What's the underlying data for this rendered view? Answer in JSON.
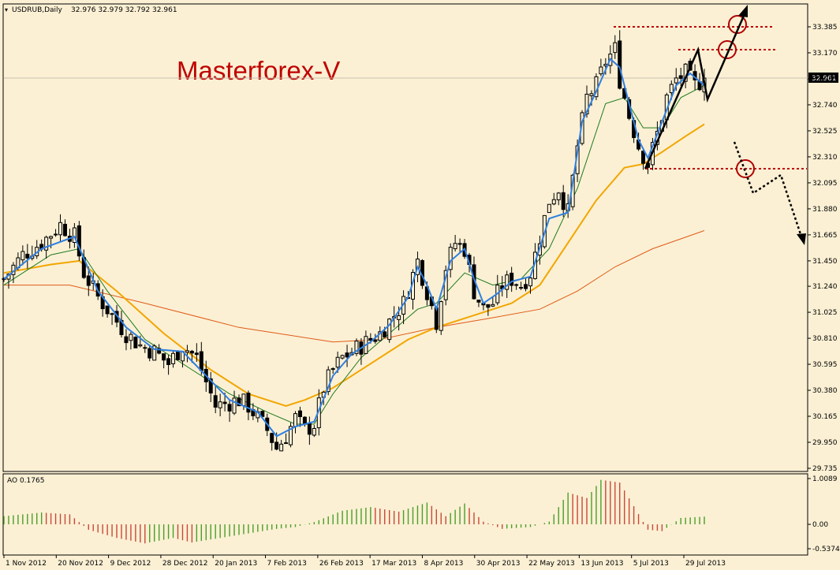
{
  "header": {
    "symbol_label": "USDRUB,Daily",
    "ohlc": "32.976 32.979 32.792 32.961"
  },
  "watermark": "Masterforex-V",
  "colors": {
    "background": "#fbf0d4",
    "bull_bar": "#4b9e2a",
    "bear_bar": "#c84838",
    "ma_fast": "#2f7fe0",
    "ma_medium": "#1e7a1e",
    "ma_slow": "#f2a600",
    "ma_long": "#e05a18",
    "annotation": "#c00000",
    "current_price_line": "#b8b0a0"
  },
  "price_tag": "32.961",
  "chart_data": [
    {
      "type": "candlestick",
      "symbol": "USDRUB",
      "timeframe": "Daily",
      "ylim": [
        29.735,
        33.385
      ],
      "y_ticks": [
        "33.385",
        "33.170",
        "32.955",
        "32.740",
        "32.525",
        "32.310",
        "32.095",
        "31.880",
        "31.665",
        "31.450",
        "31.240",
        "31.025",
        "30.810",
        "30.595",
        "30.380",
        "30.165",
        "29.950",
        "29.735"
      ],
      "x_ticks": [
        "1 Nov 2012",
        "20 Nov 2012",
        "9 Dec 2012",
        "28 Dec 2012",
        "20 Jan 2013",
        "7 Feb 2013",
        "26 Feb 2013",
        "17 Mar 2013",
        "8 Apr 2013",
        "30 Apr 2013",
        "22 May 2013",
        "13 Jun 2013",
        "5 Jul 2013",
        "29 Jul 2013"
      ],
      "last_close": 32.961,
      "price_path": [
        [
          0,
          31.3
        ],
        [
          4,
          31.5
        ],
        [
          8,
          31.6
        ],
        [
          12,
          31.75
        ],
        [
          15,
          31.65
        ],
        [
          17,
          31.35
        ],
        [
          20,
          31.15
        ],
        [
          23,
          31.0
        ],
        [
          26,
          30.85
        ],
        [
          29,
          30.75
        ],
        [
          32,
          30.7
        ],
        [
          35,
          30.6
        ],
        [
          38,
          30.75
        ],
        [
          41,
          30.65
        ],
        [
          43,
          30.45
        ],
        [
          45,
          30.25
        ],
        [
          48,
          30.28
        ],
        [
          50,
          30.3
        ],
        [
          52,
          30.25
        ],
        [
          54,
          30.15
        ],
        [
          56,
          30.05
        ],
        [
          58,
          29.9
        ],
        [
          60,
          30.0
        ],
        [
          62,
          30.15
        ],
        [
          64,
          30.05
        ],
        [
          66,
          30.1
        ],
        [
          68,
          30.4
        ],
        [
          70,
          30.55
        ],
        [
          72,
          30.65
        ],
        [
          74,
          30.7
        ],
        [
          76,
          30.75
        ],
        [
          78,
          30.8
        ],
        [
          80,
          30.85
        ],
        [
          82,
          30.95
        ],
        [
          85,
          31.1
        ],
        [
          88,
          31.45
        ],
        [
          90,
          31.2
        ],
        [
          92,
          30.95
        ],
        [
          94,
          31.4
        ],
        [
          96,
          31.6
        ],
        [
          98,
          31.55
        ],
        [
          100,
          31.2
        ],
        [
          102,
          31.05
        ],
        [
          104,
          31.1
        ],
        [
          106,
          31.25
        ],
        [
          108,
          31.3
        ],
        [
          110,
          31.25
        ],
        [
          112,
          31.35
        ],
        [
          114,
          31.65
        ],
        [
          116,
          31.95
        ],
        [
          118,
          32.05
        ],
        [
          120,
          31.85
        ],
        [
          122,
          32.4
        ],
        [
          124,
          32.8
        ],
        [
          126,
          32.9
        ],
        [
          128,
          33.1
        ],
        [
          130,
          33.2
        ],
        [
          131,
          32.95
        ],
        [
          133,
          32.65
        ],
        [
          135,
          32.4
        ],
        [
          137,
          32.25
        ],
        [
          139,
          32.5
        ],
        [
          141,
          32.8
        ],
        [
          143,
          32.95
        ],
        [
          145,
          33.0
        ],
        [
          147,
          32.9
        ],
        [
          149,
          32.96
        ]
      ],
      "moving_averages": [
        {
          "key": "fast",
          "points": [
            [
              0,
              31.3
            ],
            [
              8,
              31.55
            ],
            [
              15,
              31.65
            ],
            [
              20,
              31.2
            ],
            [
              26,
              30.9
            ],
            [
              32,
              30.72
            ],
            [
              38,
              30.7
            ],
            [
              43,
              30.5
            ],
            [
              48,
              30.3
            ],
            [
              54,
              30.2
            ],
            [
              58,
              30.0
            ],
            [
              62,
              30.08
            ],
            [
              66,
              30.12
            ],
            [
              70,
              30.5
            ],
            [
              74,
              30.68
            ],
            [
              78,
              30.78
            ],
            [
              82,
              30.92
            ],
            [
              86,
              31.15
            ],
            [
              88,
              31.4
            ],
            [
              90,
              31.25
            ],
            [
              92,
              31.05
            ],
            [
              95,
              31.45
            ],
            [
              98,
              31.55
            ],
            [
              100,
              31.3
            ],
            [
              102,
              31.1
            ],
            [
              105,
              31.18
            ],
            [
              108,
              31.28
            ],
            [
              112,
              31.32
            ],
            [
              116,
              31.8
            ],
            [
              120,
              31.85
            ],
            [
              123,
              32.6
            ],
            [
              126,
              32.85
            ],
            [
              129,
              33.12
            ],
            [
              131,
              33.05
            ],
            [
              133,
              32.75
            ],
            [
              135,
              32.45
            ],
            [
              137,
              32.3
            ],
            [
              140,
              32.6
            ],
            [
              143,
              32.9
            ],
            [
              146,
              33.0
            ],
            [
              149,
              32.9
            ]
          ]
        },
        {
          "key": "medium",
          "points": [
            [
              0,
              31.25
            ],
            [
              10,
              31.5
            ],
            [
              16,
              31.55
            ],
            [
              22,
              31.2
            ],
            [
              30,
              30.8
            ],
            [
              40,
              30.55
            ],
            [
              48,
              30.35
            ],
            [
              56,
              30.2
            ],
            [
              62,
              30.1
            ],
            [
              66,
              30.1
            ],
            [
              70,
              30.35
            ],
            [
              76,
              30.65
            ],
            [
              82,
              30.85
            ],
            [
              88,
              31.05
            ],
            [
              92,
              31.1
            ],
            [
              98,
              31.35
            ],
            [
              104,
              31.25
            ],
            [
              110,
              31.3
            ],
            [
              116,
              31.55
            ],
            [
              122,
              32.05
            ],
            [
              128,
              32.75
            ],
            [
              132,
              32.8
            ],
            [
              136,
              32.55
            ],
            [
              140,
              32.55
            ],
            [
              144,
              32.8
            ],
            [
              149,
              32.9
            ]
          ]
        },
        {
          "key": "slow",
          "points": [
            [
              0,
              31.35
            ],
            [
              10,
              31.42
            ],
            [
              16,
              31.45
            ],
            [
              24,
              31.2
            ],
            [
              34,
              30.85
            ],
            [
              44,
              30.55
            ],
            [
              52,
              30.35
            ],
            [
              60,
              30.25
            ],
            [
              64,
              30.3
            ],
            [
              70,
              30.4
            ],
            [
              78,
              30.6
            ],
            [
              86,
              30.8
            ],
            [
              92,
              30.9
            ],
            [
              100,
              31.0
            ],
            [
              108,
              31.1
            ],
            [
              114,
              31.25
            ],
            [
              120,
              31.6
            ],
            [
              126,
              31.95
            ],
            [
              132,
              32.22
            ],
            [
              136,
              32.25
            ],
            [
              140,
              32.35
            ],
            [
              145,
              32.48
            ],
            [
              149,
              32.58
            ]
          ]
        },
        {
          "key": "long",
          "points": [
            [
              0,
              31.25
            ],
            [
              14,
              31.25
            ],
            [
              30,
              31.1
            ],
            [
              50,
              30.9
            ],
            [
              70,
              30.78
            ],
            [
              80,
              30.8
            ],
            [
              92,
              30.9
            ],
            [
              104,
              30.98
            ],
            [
              114,
              31.05
            ],
            [
              122,
              31.2
            ],
            [
              130,
              31.4
            ],
            [
              138,
              31.55
            ],
            [
              149,
              31.7
            ]
          ]
        }
      ]
    },
    {
      "type": "bar",
      "indicator": "AO",
      "label": "AO 0.1765",
      "ylim": [
        -0.5374,
        1.0089
      ],
      "y_ticks": [
        "1.0089",
        "0.00",
        "-0.5374"
      ],
      "profile": [
        [
          0,
          0.18
        ],
        [
          8,
          0.26
        ],
        [
          14,
          0.22
        ],
        [
          18,
          -0.12
        ],
        [
          24,
          -0.3
        ],
        [
          30,
          -0.42
        ],
        [
          36,
          -0.3
        ],
        [
          40,
          -0.4
        ],
        [
          46,
          -0.3
        ],
        [
          52,
          -0.2
        ],
        [
          58,
          -0.1
        ],
        [
          62,
          -0.06
        ],
        [
          66,
          0.05
        ],
        [
          72,
          0.3
        ],
        [
          78,
          0.38
        ],
        [
          84,
          0.28
        ],
        [
          90,
          0.48
        ],
        [
          94,
          0.18
        ],
        [
          98,
          0.46
        ],
        [
          102,
          0.06
        ],
        [
          106,
          -0.1
        ],
        [
          112,
          -0.06
        ],
        [
          116,
          0.06
        ],
        [
          120,
          0.7
        ],
        [
          124,
          0.58
        ],
        [
          127,
          0.98
        ],
        [
          131,
          0.92
        ],
        [
          134,
          0.4
        ],
        [
          137,
          -0.12
        ],
        [
          140,
          -0.15
        ],
        [
          144,
          0.14
        ],
        [
          149,
          0.17
        ]
      ]
    }
  ]
}
